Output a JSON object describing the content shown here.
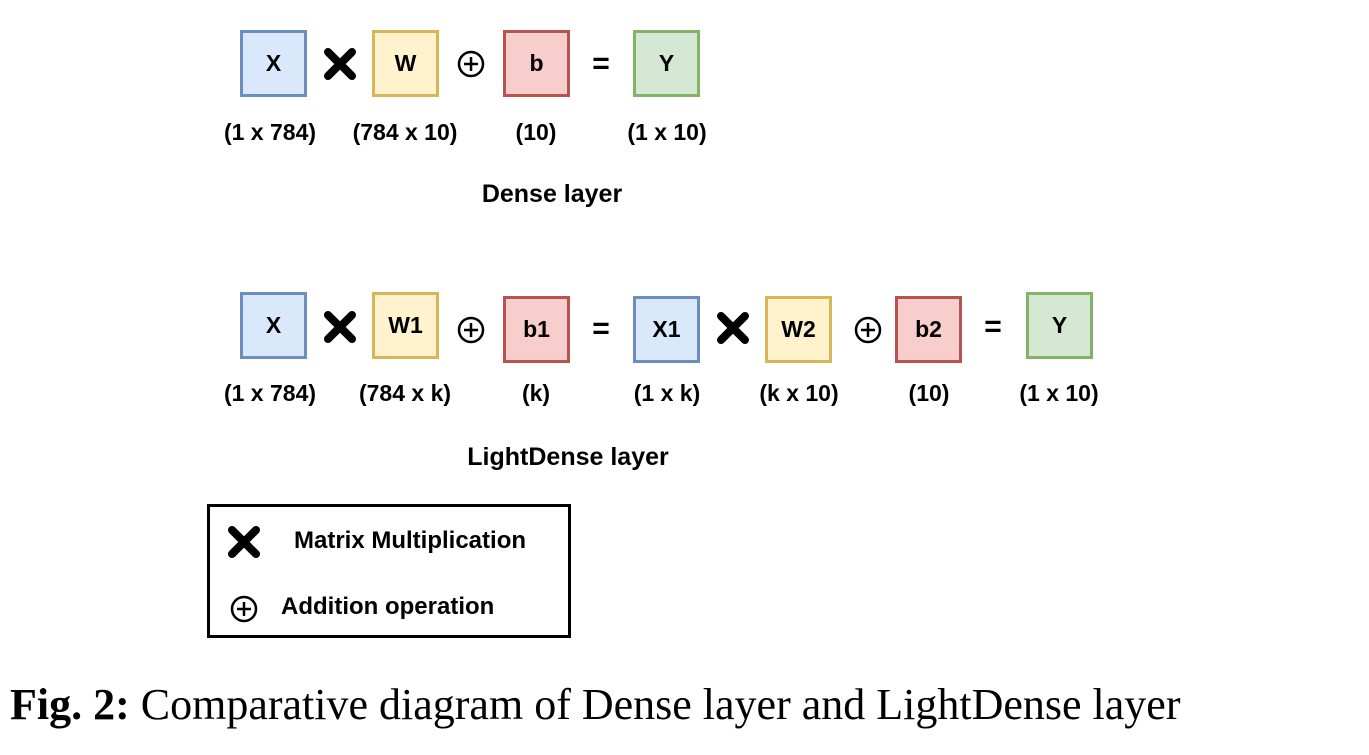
{
  "dense": {
    "boxes": [
      "X",
      "W",
      "b",
      "Y"
    ],
    "dims": [
      "(1 x 784)",
      "(784 x 10)",
      "(10)",
      "(1 x 10)"
    ],
    "equals": "=",
    "title": "Dense layer"
  },
  "lightdense": {
    "boxes": [
      "X",
      "W1",
      "b1",
      "X1",
      "W2",
      "b2",
      "Y"
    ],
    "dims": [
      "(1 x 784)",
      "(784 x k)",
      "(k)",
      "(1 x k)",
      "(k x 10)",
      "(10)",
      "(1 x 10)"
    ],
    "equals": "=",
    "title": "LightDense layer"
  },
  "legend": {
    "multiply_label": "Matrix Multiplication",
    "add_label": "Addition operation",
    "multiply_icon": "cross-icon",
    "add_icon": "circled-plus-icon"
  },
  "caption": {
    "label": "Fig. 2:",
    "text": "Comparative diagram of Dense layer and LightDense layer"
  },
  "colors": {
    "input_fill": "#dae8fc",
    "input_border": "#6c8ebf",
    "weight_fill": "#fff2cc",
    "weight_border": "#d6b656",
    "bias_fill": "#f8cecc",
    "bias_border": "#b85450",
    "output_fill": "#d5e8d4",
    "output_border": "#82b366"
  }
}
